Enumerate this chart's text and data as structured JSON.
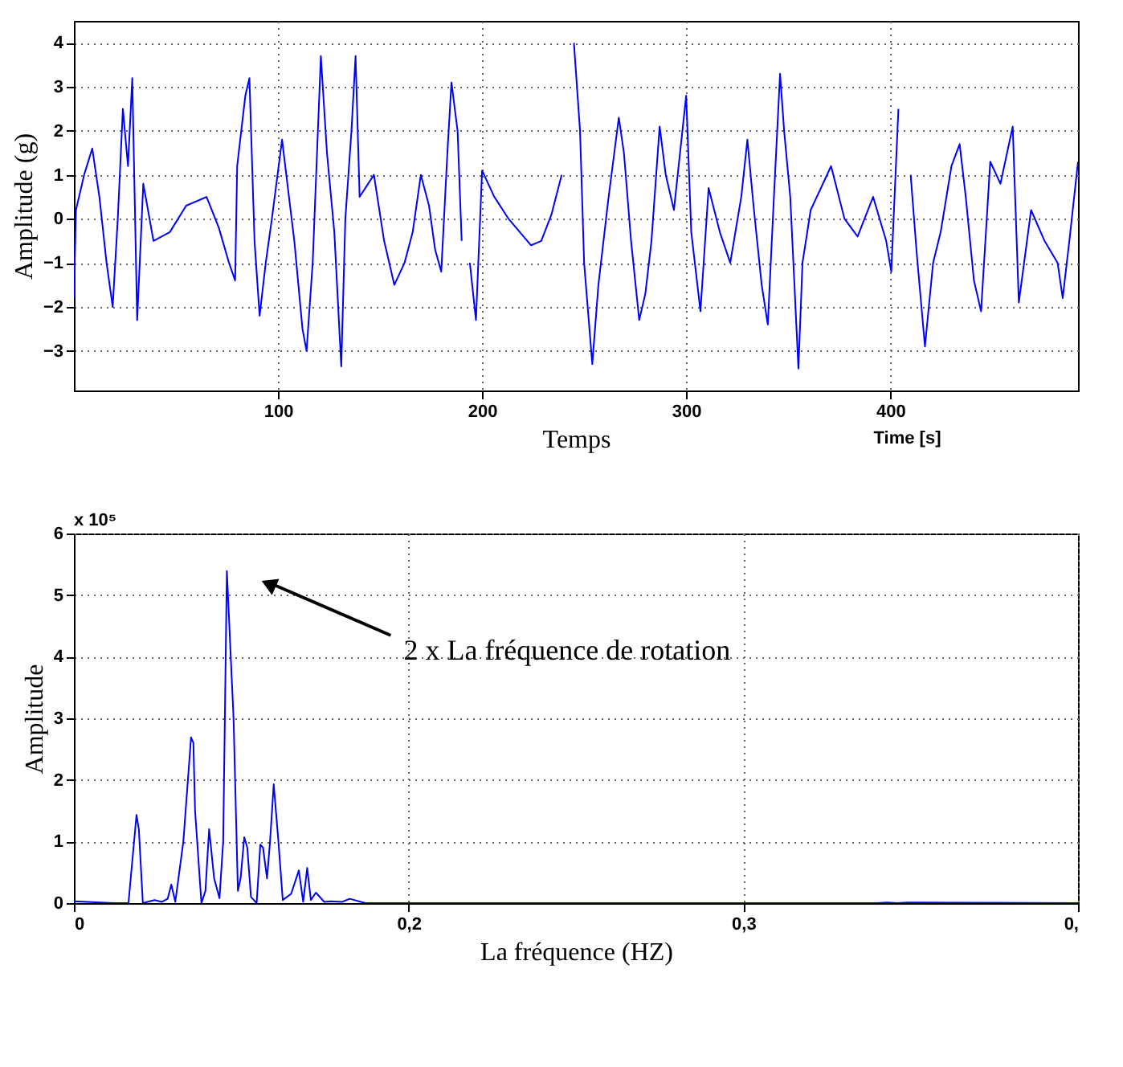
{
  "chart_data": [
    {
      "type": "line",
      "xlabel": "Temps",
      "ylabel": "Amplitude (g)",
      "annotations": [
        "Time [s]"
      ],
      "xlim": [
        0,
        492
      ],
      "ylim": [
        -3.9,
        4.5
      ],
      "xticks": [
        100,
        200,
        300,
        400
      ],
      "yticks": [
        -3,
        -2,
        -1,
        0,
        1,
        2,
        3,
        4
      ],
      "grid": true,
      "marker": "none",
      "line_style": "solid",
      "series": [
        {
          "color": "#0000ff",
          "x": [
            0,
            1,
            5,
            9,
            12.5,
            16,
            19,
            21.5,
            24,
            26.5,
            28.6,
            31,
            34,
            39,
            47,
            55,
            65,
            71,
            76,
            79,
            80,
            84,
            86,
            88.5,
            91,
            94,
            97,
            102,
            104.6,
            108,
            112,
            114,
            117,
            121,
            124,
            127.6,
            131,
            133,
            136,
            138,
            140,
            147,
            152,
            157,
            162,
            166,
            170,
            174,
            177,
            180,
            183,
            185,
            188,
            190,
            192,
            194,
            197,
            200,
            206,
            213,
            224,
            229,
            234,
            239,
            243,
            245,
            248,
            250,
            254,
            257,
            262,
            267,
            269.5,
            273,
            277,
            280,
            283,
            287,
            290,
            294,
            300,
            302.5,
            307,
            311,
            316.5,
            321.6,
            327,
            330,
            333,
            337,
            340,
            343,
            346,
            348,
            351,
            355,
            357,
            361,
            371,
            377.6,
            384,
            391.6,
            398,
            400.5,
            404,
            407,
            410,
            413,
            417,
            421,
            424.7,
            430,
            434,
            437,
            441,
            444.5,
            449,
            454,
            460,
            463,
            469,
            475.6,
            482,
            484.5,
            488,
            492
          ],
          "values": [
            -1.8,
            0.2,
            1.0,
            1.6,
            0.5,
            -1.0,
            -2.0,
            0.0,
            2.5,
            1.2,
            3.2,
            -2.3,
            0.8,
            -0.5,
            -0.3,
            0.3,
            0.5,
            -0.2,
            -1.0,
            -1.4,
            1.2,
            2.8,
            3.2,
            -0.5,
            -2.2,
            -1.0,
            0,
            1.8,
            0.8,
            -0.5,
            -2.5,
            -3.0,
            -1.0,
            3.7,
            1.5,
            -0.3,
            -3.35,
            0,
            2.0,
            3.7,
            0.5,
            1.0,
            -0.5,
            -1.5,
            -1.0,
            -0.3,
            1.0,
            0.3,
            -0.7,
            -1.2,
            1.5,
            3.1,
            2.0,
            -0.5,
            null,
            -1.0,
            -2.3,
            1.1,
            0.5,
            0,
            -0.6,
            -0.5,
            0.1,
            1.0,
            null,
            4.0,
            2.0,
            -1.0,
            -3.3,
            -1.5,
            0.5,
            2.3,
            1.5,
            -0.5,
            -2.3,
            -1.7,
            -0.5,
            2.1,
            1.0,
            0.2,
            2.8,
            -0.3,
            -2.1,
            0.7,
            -0.3,
            -1.0,
            0.5,
            1.8,
            0.3,
            -1.5,
            -2.4,
            0.5,
            3.3,
            2.0,
            0.5,
            -3.4,
            -1.0,
            0.2,
            1.2,
            0,
            -0.4,
            0.5,
            -0.5,
            -1.2,
            2.5,
            null,
            1.0,
            -0.8,
            -2.9,
            -1.0,
            -0.3,
            1.2,
            1.7,
            0.5,
            -1.4,
            -2.1,
            1.3,
            0.8,
            2.1,
            -1.9,
            0.2,
            -0.5,
            -1.0,
            -1.8,
            -0.4,
            1.3
          ]
        }
      ]
    },
    {
      "type": "line",
      "xlabel": "La fréquence (HZ)",
      "ylabel": "Amplitude",
      "annotations": [
        "x 10⁵",
        "2 x La fréquence de rotation"
      ],
      "xlim": [
        0.1,
        0.4
      ],
      "ylim": [
        0,
        6
      ],
      "xticks": [
        {
          "value": 0.1,
          "label": "0"
        },
        {
          "value": 0.2,
          "label": "0,2"
        },
        {
          "value": 0.3,
          "label": "0,3"
        },
        {
          "value": 0.4,
          "label": "0,"
        }
      ],
      "yticks": [
        0,
        1,
        2,
        3,
        4,
        5,
        6
      ],
      "grid": true,
      "marker": "none",
      "line_style": "solid",
      "series": [
        {
          "color": "#0000ff",
          "x": [
            0.1,
            0.1039,
            0.1117,
            0.1163,
            0.1187,
            0.1194,
            0.1206,
            0.1241,
            0.1263,
            0.128,
            0.1291,
            0.1303,
            0.1327,
            0.135,
            0.1357,
            0.1362,
            0.1381,
            0.1393,
            0.1404,
            0.1419,
            0.1435,
            0.1446,
            0.1457,
            0.1477,
            0.149,
            0.1498,
            0.1509,
            0.1518,
            0.1529,
            0.1546,
            0.1557,
            0.1565,
            0.1577,
            0.1586,
            0.1597,
            0.1611,
            0.1624,
            0.1649,
            0.1672,
            0.1685,
            0.1697,
            0.1708,
            0.1723,
            0.1748,
            0.1767,
            0.1801,
            0.1824,
            0.1871,
            0.1918,
            0.1933,
            0.1949,
            0.2,
            0.34,
            0.343,
            0.346,
            0.349,
            0.4
          ],
          "values": [
            0.03,
            0.02,
            0,
            0,
            1.43,
            1.2,
            0,
            0.05,
            0.02,
            0.07,
            0.3,
            0.02,
            1.0,
            2.69,
            2.6,
            1.5,
            0,
            0.2,
            1.2,
            0.4,
            0.08,
            1.0,
            5.39,
            3.0,
            0.2,
            0.4,
            1.07,
            0.9,
            0.1,
            0,
            0.95,
            0.9,
            0.4,
            1.0,
            1.93,
            1.0,
            0.05,
            0.15,
            0.53,
            0.02,
            0.57,
            0.05,
            0.17,
            0.02,
            0.03,
            0.02,
            0.07,
            0,
            0,
            0,
            0,
            0,
            0,
            0.01,
            0,
            0.01,
            0
          ]
        }
      ]
    }
  ]
}
